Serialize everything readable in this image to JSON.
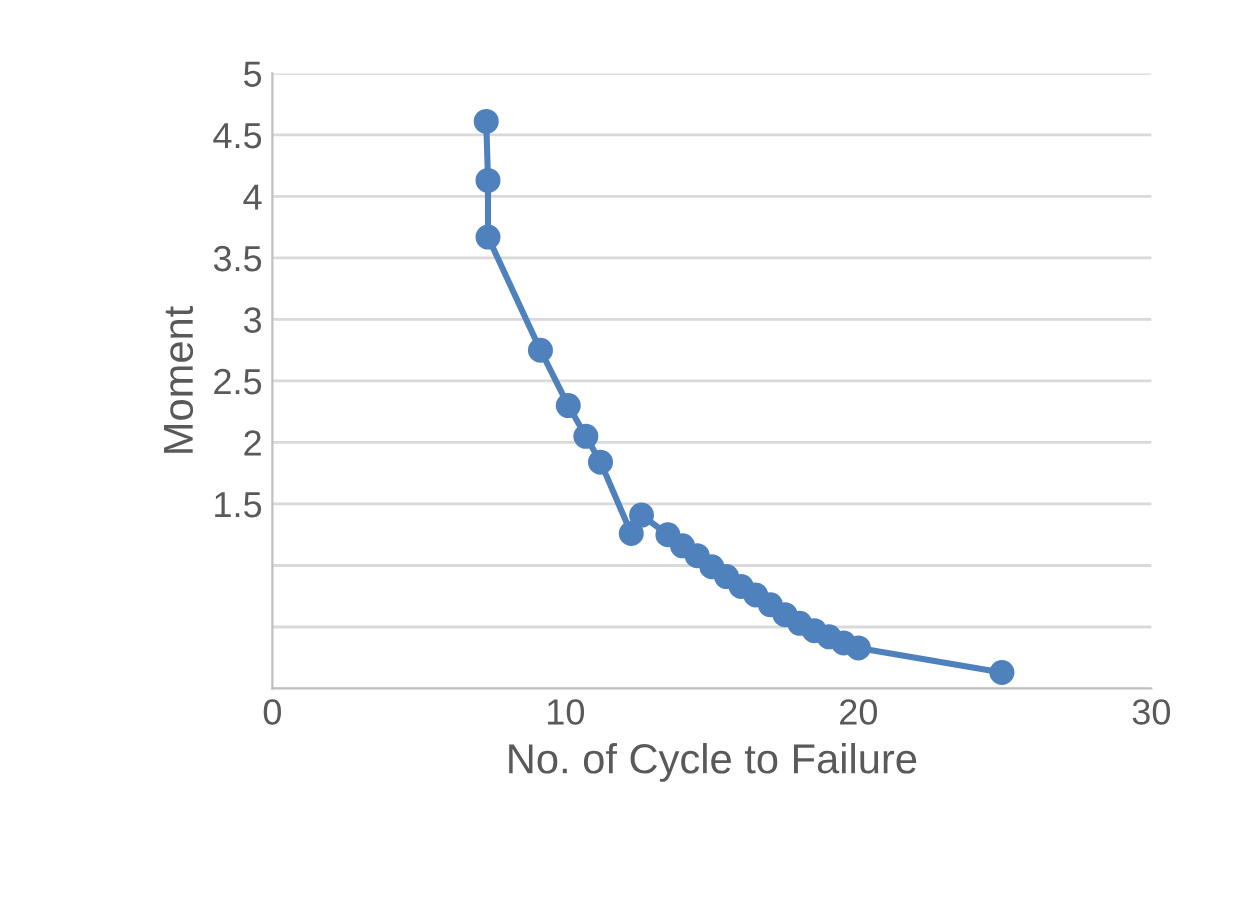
{
  "chart_data": {
    "type": "line",
    "xlabel": "No. of Cycle to Failure",
    "ylabel": "Moment",
    "x": [
      7.3,
      7.36,
      7.36,
      9.15,
      10.1,
      10.7,
      11.2,
      12.25,
      12.6,
      13.5,
      14,
      14.5,
      15,
      15.5,
      16,
      16.5,
      17,
      17.5,
      18,
      18.5,
      19,
      19.5,
      20,
      24.9
    ],
    "series": [
      {
        "color": "#4f81bd",
        "values": [
          4.61,
          4.13,
          3.67,
          2.75,
          2.3,
          2.05,
          1.84,
          1.26,
          1.41,
          1.25,
          1.16,
          1.08,
          0.99,
          0.91,
          0.83,
          0.76,
          0.68,
          0.6,
          0.53,
          0.47,
          0.42,
          0.37,
          0.33,
          0.13
        ]
      }
    ],
    "xlim": [
      0,
      30
    ],
    "xticks": [
      0,
      10,
      20,
      30
    ],
    "ylim": [
      0,
      5
    ],
    "yticks": [
      {
        "value": 0,
        "label": null
      },
      {
        "value": 0.5,
        "label": null
      },
      {
        "value": 1,
        "label": null
      },
      {
        "value": 1.5,
        "label": "1.5"
      },
      {
        "value": 2,
        "label": "2"
      },
      {
        "value": 2.5,
        "label": "2.5"
      },
      {
        "value": 3,
        "label": "3"
      },
      {
        "value": 3.5,
        "label": "3.5"
      },
      {
        "value": 4,
        "label": "4"
      },
      {
        "value": 4.5,
        "label": "4.5"
      },
      5
    ],
    "grid": "y",
    "marker": "circle",
    "line_style": "solid"
  }
}
